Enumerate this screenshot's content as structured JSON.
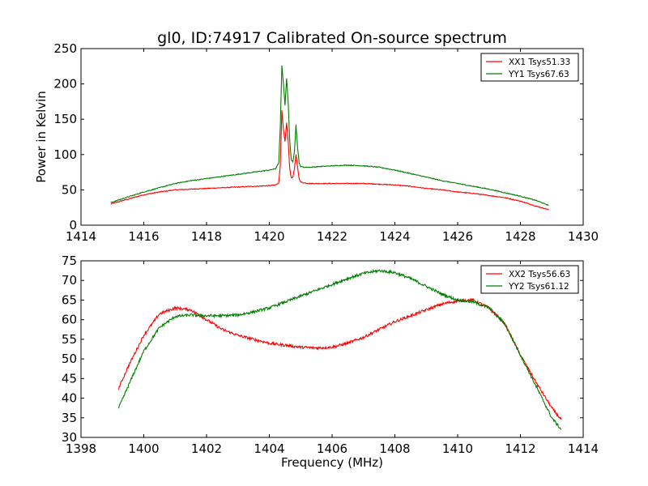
{
  "figure": {
    "title": "gl0, ID:74917 Calibrated On-source spectrum"
  },
  "chart_data": [
    {
      "type": "line",
      "title": "gl0, ID:74917 Calibrated On-source spectrum",
      "xlabel": "",
      "ylabel": "Power in Kelvin",
      "xlim": [
        1414,
        1430
      ],
      "ylim": [
        0,
        250
      ],
      "xticks": [
        1414,
        1416,
        1418,
        1420,
        1422,
        1424,
        1426,
        1428,
        1430
      ],
      "yticks": [
        0,
        50,
        100,
        150,
        200,
        250
      ],
      "grid": false,
      "legend": "top-right",
      "series": [
        {
          "name": "XX1 Tsys51.33",
          "color": "#ff0000",
          "x": [
            1414.95,
            1415.5,
            1416.0,
            1416.5,
            1417.0,
            1417.5,
            1418.0,
            1418.5,
            1419.0,
            1419.5,
            1420.0,
            1420.2,
            1420.3,
            1420.35,
            1420.4,
            1420.45,
            1420.5,
            1420.55,
            1420.6,
            1420.65,
            1420.7,
            1420.75,
            1420.8,
            1420.85,
            1420.9,
            1420.95,
            1421.0,
            1421.1,
            1421.3,
            1421.6,
            1422.0,
            1422.5,
            1423.0,
            1423.5,
            1424.0,
            1424.5,
            1425.0,
            1425.5,
            1426.0,
            1426.5,
            1427.0,
            1427.5,
            1428.0,
            1428.5,
            1428.9
          ],
          "y": [
            30,
            37,
            43,
            47,
            50,
            51,
            52,
            53,
            54,
            55,
            56,
            57,
            60,
            85,
            162,
            135,
            118,
            145,
            120,
            80,
            67,
            68,
            80,
            100,
            82,
            66,
            61,
            60,
            59,
            59,
            59,
            59,
            59,
            58,
            57,
            55,
            52,
            50,
            47,
            45,
            42,
            39,
            34,
            27,
            22
          ]
        },
        {
          "name": "YY1 Tsys67.63",
          "color": "#007f00",
          "x": [
            1414.95,
            1415.5,
            1416.0,
            1416.5,
            1417.0,
            1417.5,
            1418.0,
            1418.5,
            1419.0,
            1419.5,
            1420.0,
            1420.2,
            1420.3,
            1420.35,
            1420.4,
            1420.45,
            1420.5,
            1420.55,
            1420.6,
            1420.65,
            1420.7,
            1420.75,
            1420.8,
            1420.85,
            1420.9,
            1420.95,
            1421.0,
            1421.1,
            1421.3,
            1421.6,
            1422.0,
            1422.5,
            1423.0,
            1423.5,
            1424.0,
            1424.5,
            1425.0,
            1425.5,
            1426.0,
            1426.5,
            1427.0,
            1427.5,
            1428.0,
            1428.5,
            1428.9
          ],
          "y": [
            32,
            40,
            47,
            53,
            59,
            63,
            66,
            69,
            72,
            75,
            78,
            80,
            88,
            140,
            226,
            200,
            170,
            208,
            175,
            120,
            92,
            90,
            105,
            142,
            110,
            88,
            83,
            82,
            82,
            83,
            84,
            85,
            84,
            82,
            78,
            73,
            68,
            63,
            59,
            55,
            51,
            46,
            41,
            35,
            28
          ]
        }
      ]
    },
    {
      "type": "line",
      "title": "",
      "xlabel": "Frequency (MHz)",
      "ylabel": "",
      "xlim": [
        1398,
        1414
      ],
      "ylim": [
        30,
        75
      ],
      "xticks": [
        1398,
        1400,
        1402,
        1404,
        1406,
        1408,
        1410,
        1412,
        1414
      ],
      "yticks": [
        30,
        35,
        40,
        45,
        50,
        55,
        60,
        65,
        70,
        75
      ],
      "grid": false,
      "legend": "top-right",
      "series": [
        {
          "name": "XX2 Tsys56.63",
          "color": "#ff0000",
          "x": [
            1399.2,
            1399.5,
            1400.0,
            1400.5,
            1401.0,
            1401.5,
            1402.0,
            1402.5,
            1403.0,
            1403.5,
            1404.0,
            1404.5,
            1405.0,
            1405.5,
            1406.0,
            1406.5,
            1407.0,
            1407.5,
            1408.0,
            1408.5,
            1409.0,
            1409.5,
            1410.0,
            1410.5,
            1411.0,
            1411.5,
            1412.0,
            1412.5,
            1413.0,
            1413.3
          ],
          "y": [
            42.5,
            48,
            56,
            61.5,
            63,
            62.5,
            60,
            57.5,
            56,
            55,
            54,
            53.5,
            53,
            52.8,
            53,
            54,
            55.5,
            57.5,
            59.5,
            61,
            62.5,
            64,
            64.8,
            65,
            63,
            59,
            51,
            44,
            37.5,
            34.5
          ]
        },
        {
          "name": "YY2 Tsys61.12",
          "color": "#007f00",
          "x": [
            1399.2,
            1399.5,
            1400.0,
            1400.5,
            1401.0,
            1401.5,
            1402.0,
            1402.5,
            1403.0,
            1403.5,
            1404.0,
            1404.5,
            1405.0,
            1405.5,
            1406.0,
            1406.5,
            1407.0,
            1407.5,
            1408.0,
            1408.5,
            1409.0,
            1409.5,
            1410.0,
            1410.5,
            1411.0,
            1411.5,
            1412.0,
            1412.5,
            1413.0,
            1413.3
          ],
          "y": [
            37.5,
            43,
            52,
            58,
            60.8,
            61.2,
            61,
            61,
            61.2,
            62,
            63,
            64.5,
            66,
            67.5,
            69,
            70.5,
            71.8,
            72.5,
            72,
            70.5,
            68.5,
            66.5,
            65,
            64.5,
            63,
            59,
            51,
            43,
            35,
            32
          ]
        }
      ]
    }
  ]
}
